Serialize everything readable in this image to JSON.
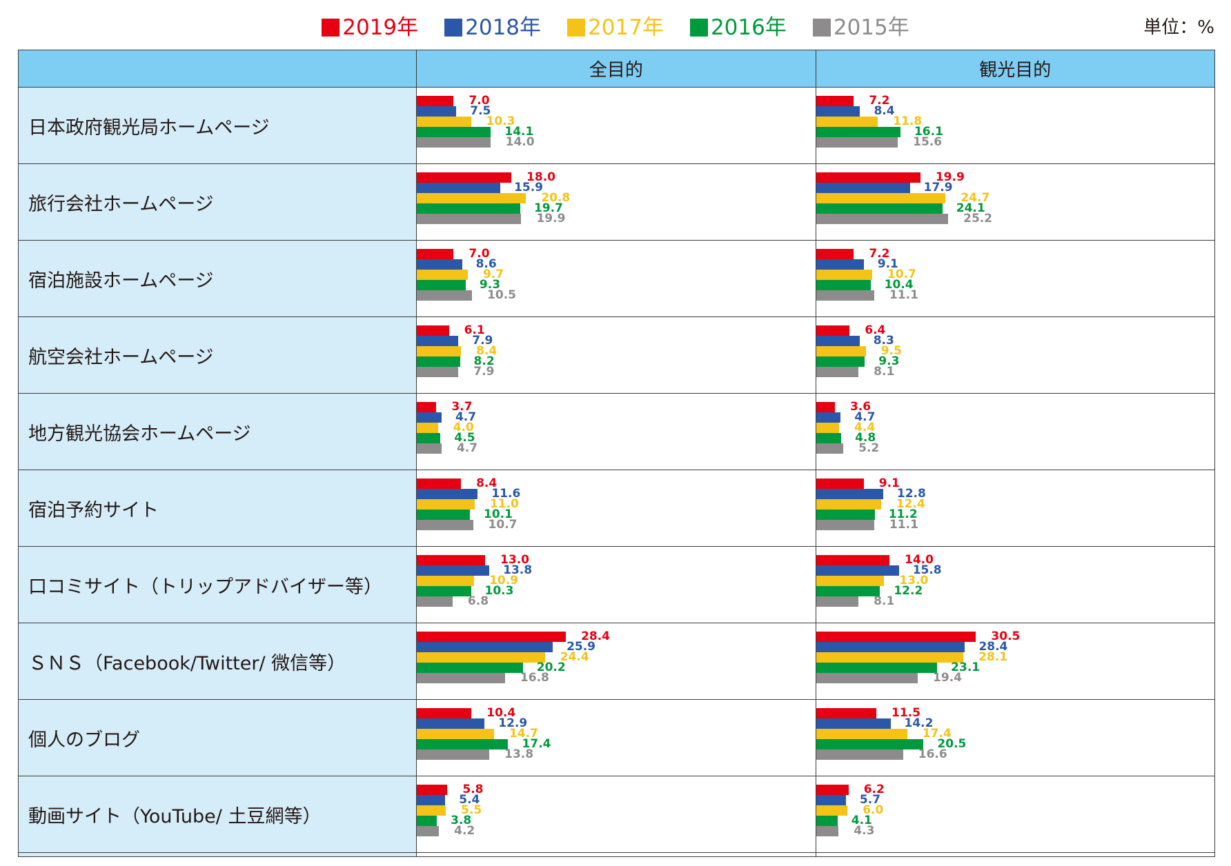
{
  "legend": [
    {
      "label": "2019年",
      "color": "#e60012"
    },
    {
      "label": "2018年",
      "color": "#2a57a7"
    },
    {
      "label": "2017年",
      "color": "#f5c317"
    },
    {
      "label": "2016年",
      "color": "#009a3e"
    },
    {
      "label": "2015年",
      "color": "#8e8b8c"
    }
  ],
  "unit_label": "単位：%",
  "chart_data": {
    "type": "bar",
    "orientation": "horizontal",
    "columns": [
      "全目的",
      "観光目的"
    ],
    "series": [
      "2019年",
      "2018年",
      "2017年",
      "2016年",
      "2015年"
    ],
    "rows": [
      {
        "label": "日本政府観光局ホームページ",
        "values": [
          [
            7.0,
            7.5,
            10.3,
            14.1,
            14.0
          ],
          [
            7.2,
            8.4,
            11.8,
            16.1,
            15.6
          ]
        ]
      },
      {
        "label": "旅行会社ホームページ",
        "values": [
          [
            18.0,
            15.9,
            20.8,
            19.7,
            19.9
          ],
          [
            19.9,
            17.9,
            24.7,
            24.1,
            25.2
          ]
        ]
      },
      {
        "label": "宿泊施設ホームページ",
        "values": [
          [
            7.0,
            8.6,
            9.7,
            9.3,
            10.5
          ],
          [
            7.2,
            9.1,
            10.7,
            10.4,
            11.1
          ]
        ]
      },
      {
        "label": "航空会社ホームページ",
        "values": [
          [
            6.1,
            7.9,
            8.4,
            8.2,
            7.9
          ],
          [
            6.4,
            8.3,
            9.5,
            9.3,
            8.1
          ]
        ]
      },
      {
        "label": "地方観光協会ホームページ",
        "values": [
          [
            3.7,
            4.7,
            4.0,
            4.5,
            4.7
          ],
          [
            3.6,
            4.7,
            4.4,
            4.8,
            5.2
          ]
        ]
      },
      {
        "label": "宿泊予約サイト",
        "values": [
          [
            8.4,
            11.6,
            11.0,
            10.1,
            10.7
          ],
          [
            9.1,
            12.8,
            12.4,
            11.2,
            11.1
          ]
        ]
      },
      {
        "label": "口コミサイト（トリップアドバイザー等）",
        "values": [
          [
            13.0,
            13.8,
            10.9,
            10.3,
            6.8
          ],
          [
            14.0,
            15.8,
            13.0,
            12.2,
            8.1
          ]
        ]
      },
      {
        "label": "ＳＮＳ（Facebook/Twitter/ 微信等）",
        "values": [
          [
            28.4,
            25.9,
            24.4,
            20.2,
            16.8
          ],
          [
            30.5,
            28.4,
            28.1,
            23.1,
            19.4
          ]
        ]
      },
      {
        "label": "個人のブログ",
        "values": [
          [
            10.4,
            12.9,
            14.7,
            17.4,
            13.8
          ],
          [
            11.5,
            14.2,
            17.4,
            20.5,
            16.6
          ]
        ]
      },
      {
        "label": "動画サイト（YouTube/ 土豆網等）",
        "values": [
          [
            5.8,
            5.4,
            5.5,
            3.8,
            4.2
          ],
          [
            6.2,
            5.7,
            6.0,
            4.1,
            4.3
          ]
        ]
      }
    ],
    "xlim": [
      0,
      70
    ],
    "grid": false,
    "legend_position": "top"
  }
}
